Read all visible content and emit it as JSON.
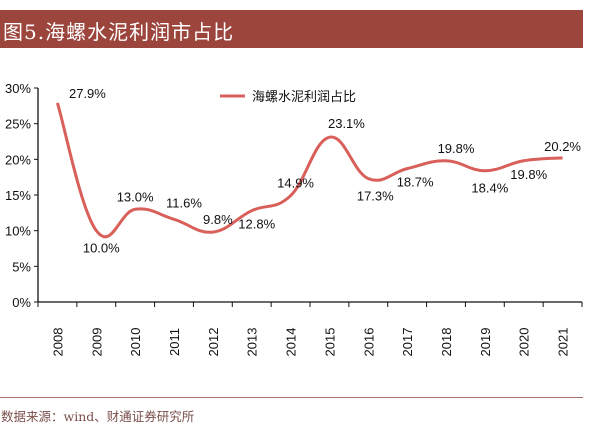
{
  "header": {
    "title": "图5.海螺水泥利润市占比"
  },
  "footer": {
    "source": "数据来源：wind、财通证券研究所"
  },
  "colors": {
    "header_bg": "#9c453d",
    "series": "#d9605a"
  },
  "chart_data": {
    "type": "line",
    "title": "",
    "xlabel": "",
    "ylabel": "",
    "categories": [
      "2008",
      "2009",
      "2010",
      "2011",
      "2012",
      "2013",
      "2014",
      "2015",
      "2016",
      "2017",
      "2018",
      "2019",
      "2020",
      "2021"
    ],
    "series": [
      {
        "name": "海螺水泥利润占比",
        "values": [
          27.9,
          10.0,
          13.0,
          11.6,
          9.8,
          12.8,
          14.9,
          23.1,
          17.3,
          18.7,
          19.8,
          18.4,
          19.8,
          20.2
        ]
      }
    ],
    "data_labels": [
      "27.9%",
      "10.0%",
      "13.0%",
      "11.6%",
      "9.8%",
      "12.8%",
      "14.9%",
      "23.1%",
      "17.3%",
      "18.7%",
      "19.8%",
      "18.4%",
      "19.8%",
      "20.2%"
    ],
    "y_ticks": [
      "0%",
      "5%",
      "10%",
      "15%",
      "20%",
      "25%",
      "30%"
    ],
    "ylim": [
      0,
      30
    ],
    "grid": false,
    "legend": "top-center",
    "smooth": true
  }
}
